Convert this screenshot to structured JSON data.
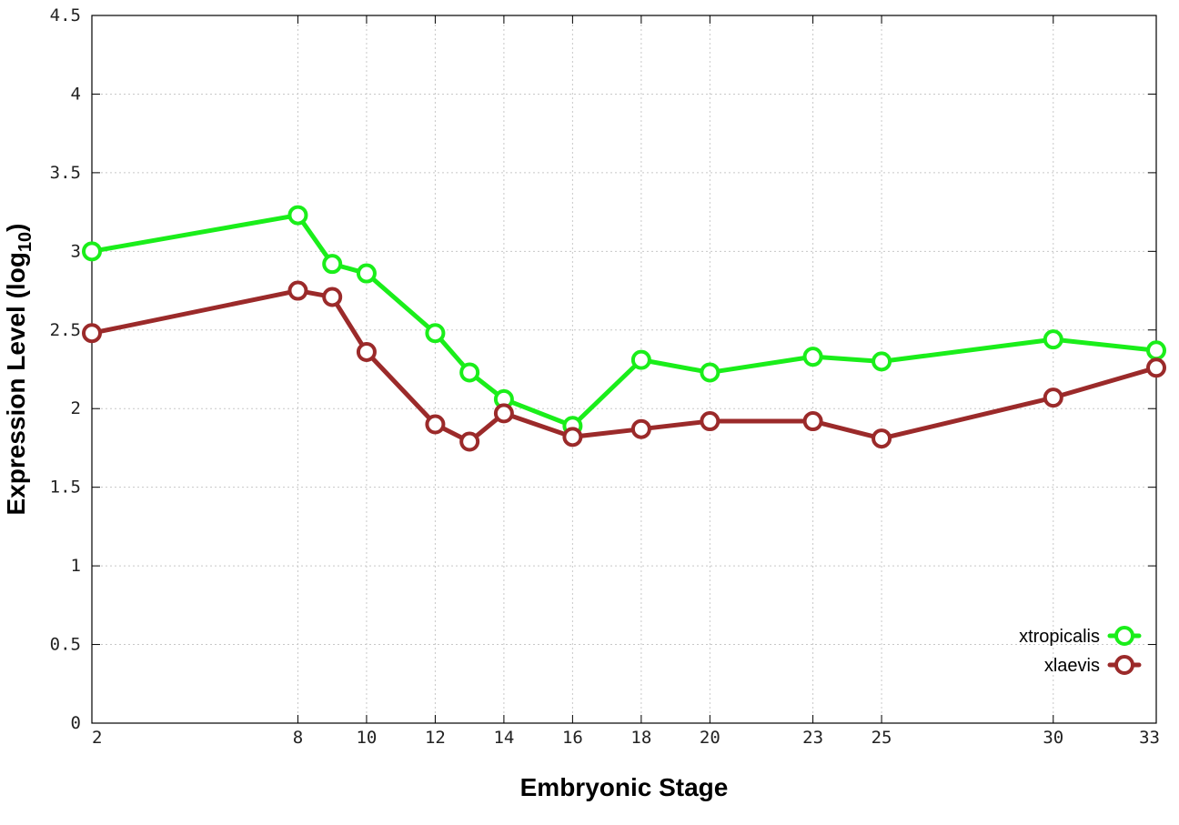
{
  "chart_data": {
    "type": "line",
    "title": "",
    "xlabel": "Embryonic Stage",
    "ylabel": {
      "main": "Expression Level (log",
      "subscript": "10",
      "suffix": ")"
    },
    "x": [
      2,
      8,
      9,
      10,
      12,
      13,
      14,
      16,
      18,
      20,
      23,
      25,
      30,
      33
    ],
    "x_ticks": [
      2,
      8,
      10,
      12,
      14,
      16,
      18,
      20,
      23,
      25,
      30,
      33
    ],
    "x_tick_labels": [
      "2",
      "8",
      "10",
      "12",
      "14",
      "16",
      "18",
      "20",
      "23",
      "25",
      "30",
      "33"
    ],
    "xlim": [
      2,
      33
    ],
    "ylim": [
      0,
      4.5
    ],
    "y_ticks": [
      0,
      0.5,
      1,
      1.5,
      2,
      2.5,
      3,
      3.5,
      4,
      4.5
    ],
    "y_tick_labels": [
      "0",
      "0.5",
      "1",
      "1.5",
      "2",
      "2.5",
      "3",
      "3.5",
      "4",
      "4.5"
    ],
    "grid": true,
    "legend_position": "bottom-right",
    "series": [
      {
        "name": "xtropicalis",
        "color": "#1aee1a",
        "marker": "circle",
        "values": [
          3.0,
          3.23,
          2.92,
          2.86,
          2.48,
          2.23,
          2.06,
          1.89,
          2.31,
          2.23,
          2.33,
          2.3,
          2.44,
          2.37
        ]
      },
      {
        "name": "xlaevis",
        "color": "#9b2a2a",
        "marker": "circle",
        "values": [
          2.48,
          2.75,
          2.71,
          2.36,
          1.9,
          1.79,
          1.97,
          1.82,
          1.87,
          1.92,
          1.92,
          1.81,
          2.07,
          2.26
        ]
      }
    ]
  }
}
